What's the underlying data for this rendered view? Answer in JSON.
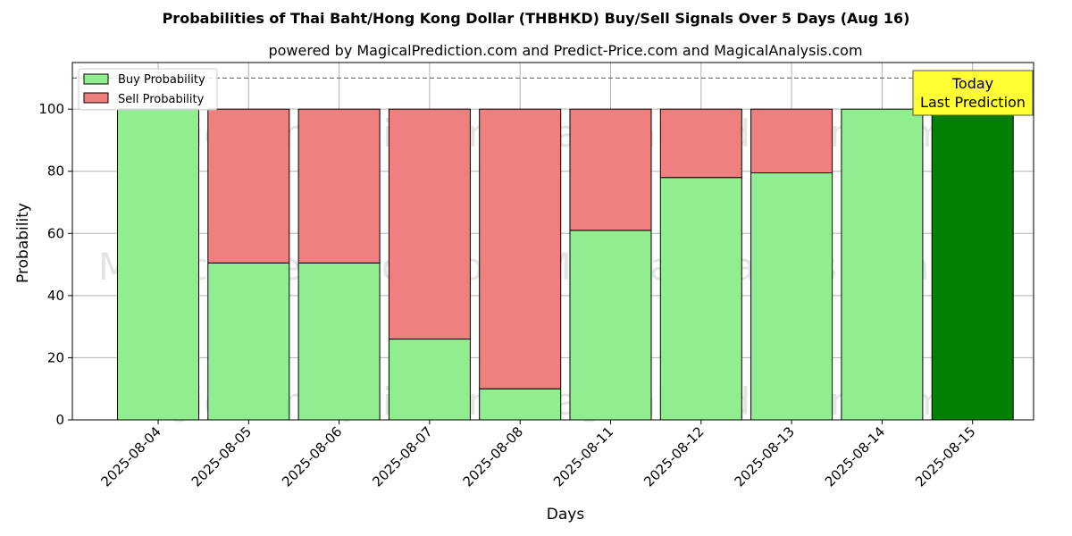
{
  "chart_data": {
    "type": "bar",
    "stacked": true,
    "title": "Probabilities of Thai Baht/Hong Kong Dollar (THBHKD) Buy/Sell Signals Over 5 Days (Aug 16)",
    "subtitle": "powered by MagicalPrediction.com and Predict-Price.com and MagicalAnalysis.com",
    "xlabel": "Days",
    "ylabel": "Probability",
    "ylim": [
      0,
      115
    ],
    "yticks": [
      0,
      20,
      40,
      60,
      80,
      100
    ],
    "grid": true,
    "legend_position": "top-left",
    "reference_line": 110,
    "categories": [
      "2025-08-04",
      "2025-08-05",
      "2025-08-06",
      "2025-08-07",
      "2025-08-08",
      "2025-08-11",
      "2025-08-12",
      "2025-08-13",
      "2025-08-14",
      "2025-08-15"
    ],
    "series": [
      {
        "name": "Buy Probability",
        "values": [
          100,
          50.5,
          50.5,
          26,
          10,
          61,
          78,
          79.5,
          100,
          100
        ]
      },
      {
        "name": "Sell Probability",
        "values": [
          0,
          49.5,
          49.5,
          74,
          90,
          39,
          22,
          20.5,
          0,
          0
        ]
      }
    ],
    "annotation": {
      "line1": "Today",
      "line2": "Last Prediction"
    },
    "watermarks": [
      "MagicalAnalysis.com",
      "MagicalPrediction.com"
    ]
  },
  "colors": {
    "buy": "#90ee90",
    "sell": "#f08080",
    "highlight": "#008000",
    "annotation_bg": "#ffff33",
    "grid": "#b0b0b0"
  }
}
